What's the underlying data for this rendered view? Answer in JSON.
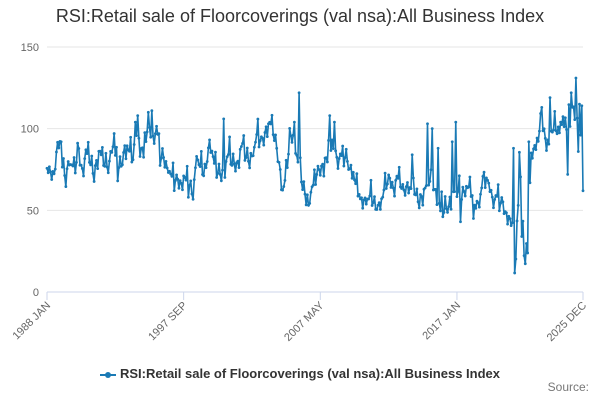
{
  "chart_data": {
    "type": "line",
    "title": "RSI:Retail sale of Floorcoverings (val nsa):All Business Index",
    "xlabel": "",
    "ylabel": "",
    "ylim": [
      0,
      150
    ],
    "yticks": [
      0,
      50,
      100,
      150
    ],
    "x_range": [
      "1988 JAN",
      "2025 DEC"
    ],
    "xtick_labels": [
      {
        "label": "1988 JAN",
        "index": 0
      },
      {
        "label": "1997 SEP",
        "index": 116
      },
      {
        "label": "2007 MAY",
        "index": 232
      },
      {
        "label": "2017 JAN",
        "index": 348
      },
      {
        "label": "2025 DEC",
        "index": 455
      }
    ],
    "series": [
      {
        "name": "RSI:Retail sale of Floorcoverings (val nsa):All Business Index",
        "color": "#1a7ab5",
        "anchors": [
          {
            "i": 0,
            "v": 78
          },
          {
            "i": 2,
            "v": 70
          },
          {
            "i": 6,
            "v": 74
          },
          {
            "i": 9,
            "v": 90
          },
          {
            "i": 13,
            "v": 78
          },
          {
            "i": 16,
            "v": 70
          },
          {
            "i": 19,
            "v": 82
          },
          {
            "i": 23,
            "v": 74
          },
          {
            "i": 27,
            "v": 86
          },
          {
            "i": 30,
            "v": 74
          },
          {
            "i": 33,
            "v": 88
          },
          {
            "i": 36,
            "v": 80
          },
          {
            "i": 40,
            "v": 72
          },
          {
            "i": 44,
            "v": 86
          },
          {
            "i": 48,
            "v": 80
          },
          {
            "i": 52,
            "v": 76
          },
          {
            "i": 55,
            "v": 92
          },
          {
            "i": 58,
            "v": 84
          },
          {
            "i": 62,
            "v": 76
          },
          {
            "i": 66,
            "v": 90
          },
          {
            "i": 70,
            "v": 86
          },
          {
            "i": 73,
            "v": 80
          },
          {
            "i": 76,
            "v": 100
          },
          {
            "i": 79,
            "v": 90
          },
          {
            "i": 82,
            "v": 84
          },
          {
            "i": 86,
            "v": 102
          },
          {
            "i": 90,
            "v": 94
          },
          {
            "i": 93,
            "v": 100
          },
          {
            "i": 96,
            "v": 82
          },
          {
            "i": 100,
            "v": 80
          },
          {
            "i": 104,
            "v": 76
          },
          {
            "i": 108,
            "v": 66
          },
          {
            "i": 112,
            "v": 68
          },
          {
            "i": 116,
            "v": 70
          },
          {
            "i": 120,
            "v": 64
          },
          {
            "i": 124,
            "v": 62
          },
          {
            "i": 127,
            "v": 82
          },
          {
            "i": 130,
            "v": 76
          },
          {
            "i": 134,
            "v": 72
          },
          {
            "i": 138,
            "v": 94
          },
          {
            "i": 142,
            "v": 80
          },
          {
            "i": 146,
            "v": 70
          },
          {
            "i": 150,
            "v": 74
          },
          {
            "i": 154,
            "v": 86
          },
          {
            "i": 158,
            "v": 78
          },
          {
            "i": 162,
            "v": 82
          },
          {
            "i": 166,
            "v": 90
          },
          {
            "i": 170,
            "v": 80
          },
          {
            "i": 174,
            "v": 84
          },
          {
            "i": 178,
            "v": 96
          },
          {
            "i": 182,
            "v": 90
          },
          {
            "i": 186,
            "v": 100
          },
          {
            "i": 190,
            "v": 104
          },
          {
            "i": 194,
            "v": 92
          },
          {
            "i": 197,
            "v": 80
          },
          {
            "i": 200,
            "v": 62
          },
          {
            "i": 203,
            "v": 72
          },
          {
            "i": 206,
            "v": 92
          },
          {
            "i": 210,
            "v": 98
          },
          {
            "i": 214,
            "v": 74
          },
          {
            "i": 218,
            "v": 62
          },
          {
            "i": 222,
            "v": 56
          },
          {
            "i": 226,
            "v": 64
          },
          {
            "i": 230,
            "v": 72
          },
          {
            "i": 234,
            "v": 78
          },
          {
            "i": 238,
            "v": 82
          },
          {
            "i": 242,
            "v": 86
          },
          {
            "i": 246,
            "v": 84
          },
          {
            "i": 250,
            "v": 82
          },
          {
            "i": 254,
            "v": 80
          },
          {
            "i": 258,
            "v": 76
          },
          {
            "i": 262,
            "v": 68
          },
          {
            "i": 266,
            "v": 58
          },
          {
            "i": 270,
            "v": 57
          },
          {
            "i": 274,
            "v": 60
          },
          {
            "i": 278,
            "v": 52
          },
          {
            "i": 282,
            "v": 54
          },
          {
            "i": 286,
            "v": 62
          },
          {
            "i": 290,
            "v": 68
          },
          {
            "i": 294,
            "v": 65
          },
          {
            "i": 298,
            "v": 70
          },
          {
            "i": 302,
            "v": 60
          },
          {
            "i": 306,
            "v": 66
          },
          {
            "i": 310,
            "v": 64
          },
          {
            "i": 314,
            "v": 58
          },
          {
            "i": 318,
            "v": 57
          },
          {
            "i": 322,
            "v": 64
          },
          {
            "i": 326,
            "v": 68
          },
          {
            "i": 330,
            "v": 62
          },
          {
            "i": 334,
            "v": 52
          },
          {
            "i": 338,
            "v": 50
          },
          {
            "i": 342,
            "v": 56
          },
          {
            "i": 346,
            "v": 60
          },
          {
            "i": 350,
            "v": 64
          },
          {
            "i": 354,
            "v": 62
          },
          {
            "i": 358,
            "v": 66
          },
          {
            "i": 362,
            "v": 56
          },
          {
            "i": 366,
            "v": 58
          },
          {
            "i": 370,
            "v": 68
          },
          {
            "i": 374,
            "v": 66
          },
          {
            "i": 378,
            "v": 62
          },
          {
            "i": 382,
            "v": 56
          },
          {
            "i": 386,
            "v": 54
          },
          {
            "i": 390,
            "v": 50
          },
          {
            "i": 394,
            "v": 44
          },
          {
            "i": 396,
            "v": 30
          },
          {
            "i": 397,
            "v": 15
          },
          {
            "i": 398,
            "v": 14
          },
          {
            "i": 399,
            "v": 40
          },
          {
            "i": 401,
            "v": 88
          },
          {
            "i": 403,
            "v": 60
          },
          {
            "i": 405,
            "v": 20
          },
          {
            "i": 407,
            "v": 17
          },
          {
            "i": 409,
            "v": 40
          },
          {
            "i": 411,
            "v": 84
          },
          {
            "i": 414,
            "v": 90
          },
          {
            "i": 418,
            "v": 98
          },
          {
            "i": 422,
            "v": 95
          },
          {
            "i": 426,
            "v": 92
          },
          {
            "i": 430,
            "v": 100
          },
          {
            "i": 434,
            "v": 96
          },
          {
            "i": 438,
            "v": 104
          },
          {
            "i": 442,
            "v": 102
          },
          {
            "i": 446,
            "v": 110
          },
          {
            "i": 449,
            "v": 112
          },
          {
            "i": 452,
            "v": 104
          },
          {
            "i": 454,
            "v": 96
          },
          {
            "i": 455,
            "v": 62
          }
        ],
        "spikes": [
          {
            "i": 12,
            "v": 92
          },
          {
            "i": 57,
            "v": 97
          },
          {
            "i": 75,
            "v": 104
          },
          {
            "i": 77,
            "v": 108
          },
          {
            "i": 86,
            "v": 110
          },
          {
            "i": 89,
            "v": 111
          },
          {
            "i": 127,
            "v": 83
          },
          {
            "i": 150,
            "v": 106
          },
          {
            "i": 210,
            "v": 104
          },
          {
            "i": 214,
            "v": 122
          },
          {
            "i": 240,
            "v": 108
          },
          {
            "i": 244,
            "v": 104
          },
          {
            "i": 310,
            "v": 84
          },
          {
            "i": 323,
            "v": 103
          },
          {
            "i": 327,
            "v": 100
          },
          {
            "i": 332,
            "v": 88
          },
          {
            "i": 344,
            "v": 92
          },
          {
            "i": 347,
            "v": 104
          },
          {
            "i": 396,
            "v": 88
          },
          {
            "i": 409,
            "v": 92
          },
          {
            "i": 420,
            "v": 113
          },
          {
            "i": 427,
            "v": 119
          },
          {
            "i": 436,
            "v": 104
          },
          {
            "i": 445,
            "v": 122
          },
          {
            "i": 449,
            "v": 131
          },
          {
            "i": 452,
            "v": 115
          },
          {
            "i": 454,
            "v": 114
          },
          {
            "i": 60,
            "v": 68
          },
          {
            "i": 120,
            "v": 58
          },
          {
            "i": 222,
            "v": 53
          },
          {
            "i": 266,
            "v": 57
          },
          {
            "i": 351,
            "v": 43
          },
          {
            "i": 362,
            "v": 45
          },
          {
            "i": 388,
            "v": 48
          },
          {
            "i": 400,
            "v": 53
          },
          {
            "i": 403,
            "v": 34
          },
          {
            "i": 442,
            "v": 72
          },
          {
            "i": 451,
            "v": 86
          }
        ]
      }
    ]
  },
  "legend": {
    "label": "RSI:Retail sale of Floorcoverings (val nsa):All Business Index"
  },
  "source": {
    "label": "Source:"
  }
}
